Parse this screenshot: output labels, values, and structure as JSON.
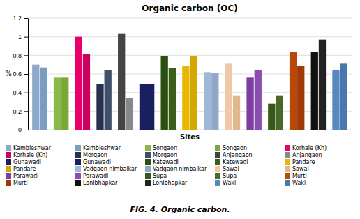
{
  "chart_data": {
    "type": "bar",
    "title": "Organic carbon (OC)",
    "x_label": "Sites",
    "y_label": "%",
    "annotations": [
      "FIG. 4. Organic carbon."
    ],
    "categories": [
      "Kambleshwar",
      "Kambleshwar",
      "Songaon",
      "Songaon",
      "Korhale (Kh)",
      "Korhale (Kh)",
      "Morgaon",
      "Morgaon",
      "Anjangaon",
      "Anjangaon",
      "Gunawadi",
      "Gunawadi",
      "Katewadi",
      "Katewadi",
      "Pandare",
      "Pandare",
      "Vadgaon nimbalkar",
      "Vadgaon nimbalkar",
      "Sawal",
      "Sawal",
      "Parawadi",
      "Parawadi",
      "Supa",
      "Supa",
      "Murti",
      "Murti",
      "Lonibhapkar",
      "Lonibhapkar",
      "Waki",
      "Waki"
    ],
    "values": [
      0.7,
      0.67,
      0.56,
      0.56,
      1.0,
      0.81,
      0.49,
      0.64,
      1.03,
      0.34,
      0.49,
      0.49,
      0.79,
      0.66,
      0.69,
      0.79,
      0.62,
      0.61,
      0.71,
      0.37,
      0.56,
      0.64,
      0.28,
      0.37,
      0.84,
      0.69,
      0.84,
      0.97,
      0.64,
      0.71
    ],
    "colors": [
      "#8da8c8",
      "#7b9dc0",
      "#8ab84a",
      "#79a838",
      "#e8006a",
      "#cc0060",
      "#2a3050",
      "#404f6a",
      "#444444",
      "#888888",
      "#182060",
      "#182060",
      "#2a4f10",
      "#3a5f1a",
      "#e8b800",
      "#d4a800",
      "#a0b8d8",
      "#90a8c8",
      "#f0c8a8",
      "#e0b890",
      "#7a3fa0",
      "#8a4db0",
      "#385818",
      "#4a6828",
      "#b84808",
      "#a03808",
      "#111111",
      "#222222",
      "#5888c0",
      "#4878b0"
    ],
    "ylim": [
      0,
      1.2
    ],
    "yticks": [
      0,
      0.2,
      0.4,
      0.6,
      0.8,
      1,
      1.2
    ],
    "grid": true,
    "legend": "bottom",
    "tick_labels": "y"
  }
}
